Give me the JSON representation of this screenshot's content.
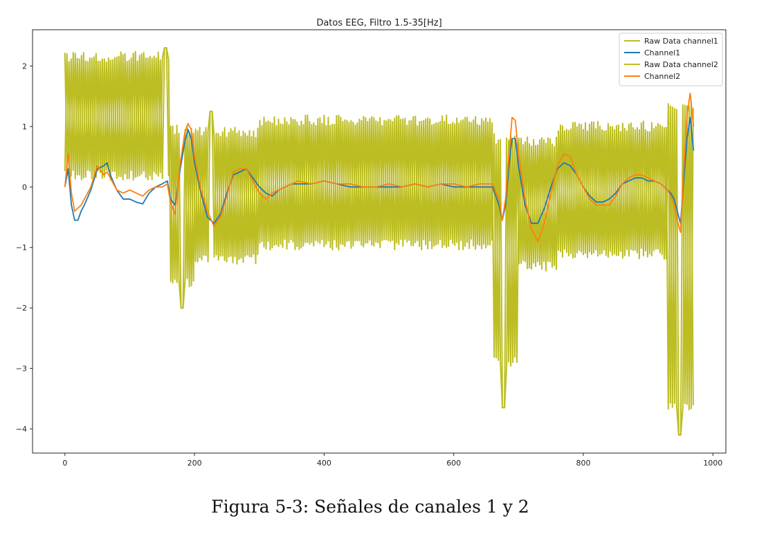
{
  "chart_data": {
    "type": "line",
    "title": "Datos EEG, Filtro 1.5-35[Hz]",
    "xlabel": "",
    "ylabel": "",
    "xlim": [
      -50,
      1020
    ],
    "ylim": [
      -4.4,
      2.6
    ],
    "x_ticks": [
      0,
      200,
      400,
      600,
      800,
      1000
    ],
    "x_tick_labels": [
      "0",
      "200",
      "400",
      "600",
      "800",
      "1000"
    ],
    "y_ticks": [
      2,
      1,
      0,
      -1,
      -2,
      -3,
      -4
    ],
    "y_tick_labels": [
      "2",
      "1",
      "0",
      "−1",
      "−2",
      "−3",
      "−4"
    ],
    "grid": false,
    "legend_position": "top-right",
    "raw_oscillation": {
      "period_samples": 6.4,
      "segments": [
        {
          "x_start": 0,
          "x_end": 160,
          "upper": 2.15,
          "lower": 0.2
        },
        {
          "x_start": 160,
          "x_end": 200,
          "upper": 0.95,
          "lower": -1.6
        },
        {
          "x_start": 200,
          "x_end": 300,
          "upper": 0.9,
          "lower": -1.2
        },
        {
          "x_start": 300,
          "x_end": 660,
          "upper": 1.1,
          "lower": -0.95
        },
        {
          "x_start": 660,
          "x_end": 700,
          "upper": 0.8,
          "lower": -2.9
        },
        {
          "x_start": 700,
          "x_end": 760,
          "upper": 0.75,
          "lower": -1.3
        },
        {
          "x_start": 760,
          "x_end": 930,
          "upper": 1.0,
          "lower": -1.1
        },
        {
          "x_start": 930,
          "x_end": 970,
          "upper": 1.35,
          "lower": -3.6
        }
      ],
      "peaks": [
        {
          "x": 156,
          "y": 2.3
        },
        {
          "x": 182,
          "y": -2.0
        },
        {
          "x": 226,
          "y": 1.25
        },
        {
          "x": 677,
          "y": -3.65
        },
        {
          "x": 950,
          "y": -4.1
        }
      ]
    },
    "series": [
      {
        "name": "Raw Data channel1",
        "color": "#bcbd22",
        "derived_from": "raw_oscillation"
      },
      {
        "name": "Channel1",
        "color": "#1f77b4",
        "x": [
          0,
          5,
          10,
          15,
          20,
          25,
          30,
          40,
          50,
          60,
          65,
          70,
          80,
          90,
          100,
          110,
          120,
          130,
          140,
          150,
          158,
          163,
          170,
          178,
          185,
          190,
          195,
          200,
          210,
          220,
          230,
          240,
          250,
          260,
          270,
          280,
          290,
          300,
          310,
          320,
          330,
          340,
          350,
          360,
          380,
          400,
          420,
          440,
          460,
          480,
          500,
          520,
          540,
          560,
          580,
          600,
          620,
          640,
          660,
          670,
          675,
          680,
          685,
          690,
          695,
          700,
          710,
          720,
          730,
          740,
          750,
          760,
          770,
          780,
          790,
          800,
          810,
          820,
          830,
          840,
          850,
          860,
          870,
          880,
          890,
          900,
          910,
          920,
          930,
          935,
          940,
          945,
          950,
          955,
          960,
          965,
          970
        ],
        "y": [
          0.0,
          0.3,
          -0.3,
          -0.55,
          -0.55,
          -0.4,
          -0.3,
          -0.05,
          0.3,
          0.35,
          0.4,
          0.2,
          -0.05,
          -0.2,
          -0.2,
          -0.25,
          -0.28,
          -0.1,
          0.0,
          0.05,
          0.1,
          -0.2,
          -0.3,
          0.3,
          0.75,
          0.95,
          0.8,
          0.4,
          -0.1,
          -0.5,
          -0.6,
          -0.45,
          -0.1,
          0.2,
          0.25,
          0.3,
          0.15,
          0.0,
          -0.1,
          -0.15,
          -0.05,
          0.0,
          0.05,
          0.05,
          0.05,
          0.1,
          0.05,
          0.0,
          0.0,
          0.0,
          0.0,
          0.0,
          0.05,
          0.0,
          0.05,
          0.0,
          0.0,
          0.0,
          0.0,
          -0.3,
          -0.55,
          -0.3,
          0.3,
          0.8,
          0.8,
          0.35,
          -0.3,
          -0.6,
          -0.6,
          -0.35,
          0.0,
          0.3,
          0.4,
          0.35,
          0.2,
          0.0,
          -0.15,
          -0.25,
          -0.25,
          -0.2,
          -0.1,
          0.05,
          0.1,
          0.15,
          0.15,
          0.1,
          0.1,
          0.05,
          -0.05,
          -0.1,
          -0.2,
          -0.4,
          -0.6,
          0.1,
          0.8,
          1.15,
          0.6
        ]
      },
      {
        "name": "Raw Data channel2",
        "color": "#bcbd22",
        "derived_from": "raw_oscillation"
      },
      {
        "name": "Channel2",
        "color": "#ff7f0e",
        "x": [
          0,
          5,
          10,
          15,
          20,
          25,
          30,
          40,
          50,
          60,
          65,
          70,
          80,
          90,
          100,
          110,
          120,
          130,
          140,
          150,
          158,
          163,
          170,
          178,
          185,
          190,
          195,
          200,
          210,
          220,
          230,
          240,
          250,
          260,
          270,
          280,
          290,
          300,
          310,
          320,
          330,
          340,
          350,
          360,
          380,
          400,
          420,
          440,
          460,
          480,
          500,
          520,
          540,
          560,
          580,
          600,
          620,
          640,
          660,
          670,
          675,
          680,
          685,
          690,
          695,
          700,
          710,
          720,
          730,
          740,
          750,
          760,
          770,
          780,
          790,
          800,
          810,
          820,
          830,
          840,
          850,
          860,
          870,
          880,
          890,
          900,
          910,
          920,
          930,
          935,
          940,
          945,
          950,
          955,
          960,
          965,
          970
        ],
        "y": [
          0.0,
          0.55,
          -0.1,
          -0.4,
          -0.35,
          -0.3,
          -0.2,
          0.0,
          0.35,
          0.2,
          0.25,
          0.15,
          -0.05,
          -0.1,
          -0.05,
          -0.1,
          -0.15,
          -0.05,
          0.0,
          0.0,
          0.05,
          -0.25,
          -0.45,
          0.4,
          0.9,
          1.05,
          0.95,
          0.5,
          -0.05,
          -0.4,
          -0.65,
          -0.5,
          -0.15,
          0.25,
          0.3,
          0.3,
          0.1,
          -0.1,
          -0.2,
          -0.1,
          -0.05,
          0.0,
          0.05,
          0.1,
          0.05,
          0.1,
          0.05,
          0.05,
          0.0,
          0.0,
          0.05,
          0.0,
          0.05,
          0.0,
          0.05,
          0.05,
          0.0,
          0.05,
          0.05,
          -0.2,
          -0.55,
          -0.2,
          0.5,
          1.15,
          1.1,
          0.55,
          -0.2,
          -0.7,
          -0.9,
          -0.6,
          -0.1,
          0.35,
          0.55,
          0.5,
          0.2,
          0.0,
          -0.2,
          -0.3,
          -0.3,
          -0.3,
          -0.15,
          0.05,
          0.15,
          0.2,
          0.2,
          0.15,
          0.1,
          0.05,
          -0.05,
          -0.15,
          -0.3,
          -0.55,
          -0.75,
          0.3,
          1.2,
          1.55,
          1.0
        ]
      }
    ]
  },
  "caption": "Figura 5-3: Señales de canales 1 y 2"
}
